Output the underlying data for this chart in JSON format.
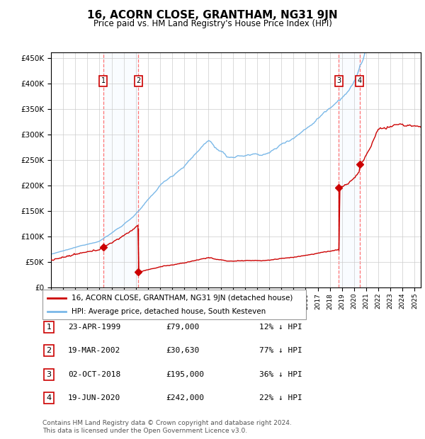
{
  "title": "16, ACORN CLOSE, GRANTHAM, NG31 9JN",
  "subtitle": "Price paid vs. HM Land Registry's House Price Index (HPI)",
  "ylim": [
    0,
    460000
  ],
  "yticks": [
    0,
    50000,
    100000,
    150000,
    200000,
    250000,
    300000,
    350000,
    400000,
    450000
  ],
  "xlim_start": 1995.0,
  "xlim_end": 2025.5,
  "transactions": [
    {
      "num": 1,
      "date_num": 1999.31,
      "price": 79000,
      "date_str": "23-APR-1999",
      "pct": "12%"
    },
    {
      "num": 2,
      "date_num": 2002.21,
      "price": 30630,
      "date_str": "19-MAR-2002",
      "pct": "77%"
    },
    {
      "num": 3,
      "date_num": 2018.75,
      "price": 195000,
      "date_str": "02-OCT-2018",
      "pct": "36%"
    },
    {
      "num": 4,
      "date_num": 2020.46,
      "price": 242000,
      "date_str": "19-JUN-2020",
      "pct": "22%"
    }
  ],
  "hpi_color": "#7ab8e8",
  "price_color": "#cc0000",
  "shade_color": "#ddeeff",
  "transaction_box_color": "#cc0000",
  "footer": "Contains HM Land Registry data © Crown copyright and database right 2024.\nThis data is licensed under the Open Government Licence v3.0.",
  "legend1": "16, ACORN CLOSE, GRANTHAM, NG31 9JN (detached house)",
  "legend2": "HPI: Average price, detached house, South Kesteven"
}
